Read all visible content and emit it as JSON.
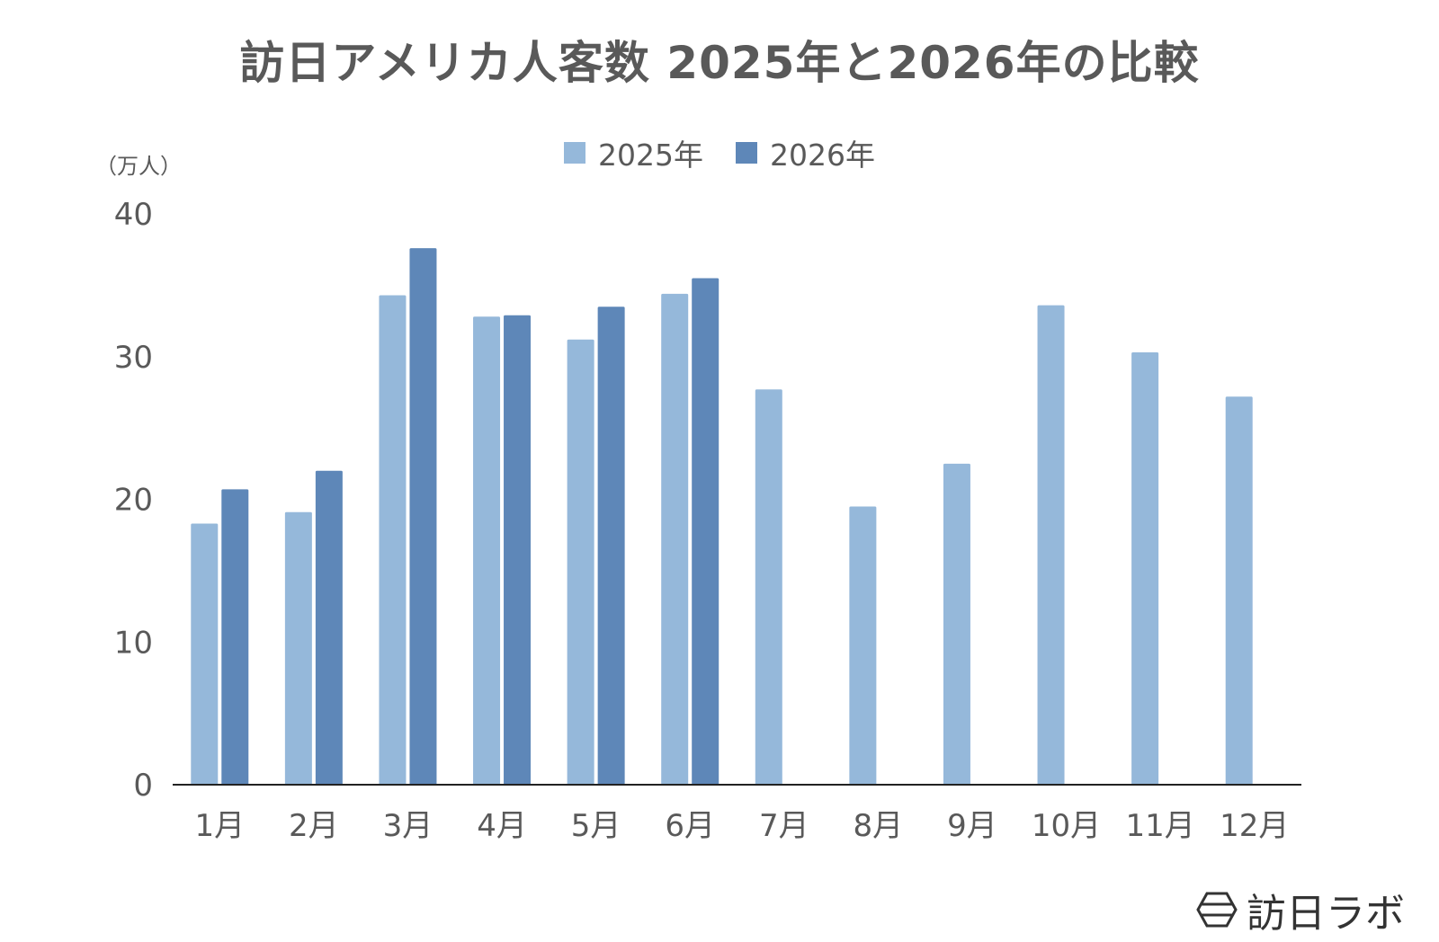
{
  "chart_data": {
    "type": "bar",
    "title": "訪日アメリカ人客数 2025年と2026年の比較",
    "unit": "（万人）",
    "categories": [
      "1月",
      "2月",
      "3月",
      "4月",
      "5月",
      "6月",
      "7月",
      "8月",
      "9月",
      "10月",
      "11月",
      "12月"
    ],
    "series": [
      {
        "name": "2025年",
        "color": "#95b8da",
        "values": [
          18.3,
          19.1,
          34.3,
          32.8,
          31.2,
          34.4,
          27.7,
          19.5,
          22.5,
          33.6,
          30.3,
          27.2
        ]
      },
      {
        "name": "2026年",
        "color": "#5e87b8",
        "values": [
          20.7,
          22.0,
          37.6,
          32.9,
          33.5,
          35.5,
          null,
          null,
          null,
          null,
          null,
          null
        ]
      }
    ],
    "ylim": [
      0,
      40
    ],
    "yticks": [
      0,
      10,
      20,
      30,
      40
    ],
    "grid": false,
    "legend_position": "top-center"
  },
  "watermark": {
    "text": "訪日ラボ",
    "icon": "hexagon-logo-icon"
  }
}
